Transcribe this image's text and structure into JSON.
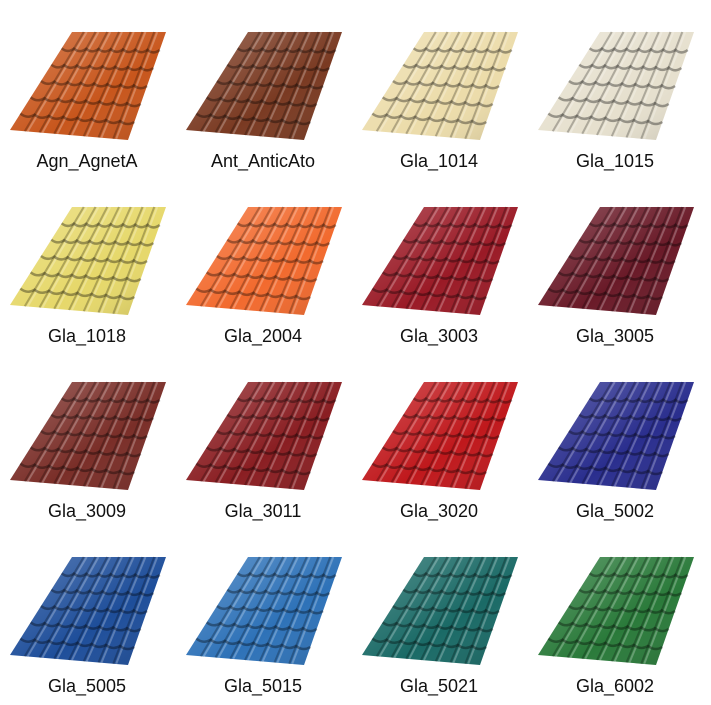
{
  "items": [
    {
      "label": "Agn_AgnetA",
      "color": "#c8561c"
    },
    {
      "label": "Ant_AnticAto",
      "color": "#7a3a22"
    },
    {
      "label": "Gla_1014",
      "color": "#ecdcaa"
    },
    {
      "label": "Gla_1015",
      "color": "#e6e0ce"
    },
    {
      "label": "Gla_1018",
      "color": "#e6d86a"
    },
    {
      "label": "Gla_2004",
      "color": "#f26a2e"
    },
    {
      "label": "Gla_3003",
      "color": "#9a1a26"
    },
    {
      "label": "Gla_3005",
      "color": "#6a1a28"
    },
    {
      "label": "Gla_3009",
      "color": "#7a2e28"
    },
    {
      "label": "Gla_3011",
      "color": "#8a1e22"
    },
    {
      "label": "Gla_3020",
      "color": "#c0181c"
    },
    {
      "label": "Gla_5002",
      "color": "#2a2e8e"
    },
    {
      "label": "Gla_5005",
      "color": "#1e4e9a"
    },
    {
      "label": "Gla_5015",
      "color": "#2e72b8"
    },
    {
      "label": "Gla_5021",
      "color": "#1a6a66"
    },
    {
      "label": "Gla_6002",
      "color": "#2a7a3a"
    }
  ]
}
